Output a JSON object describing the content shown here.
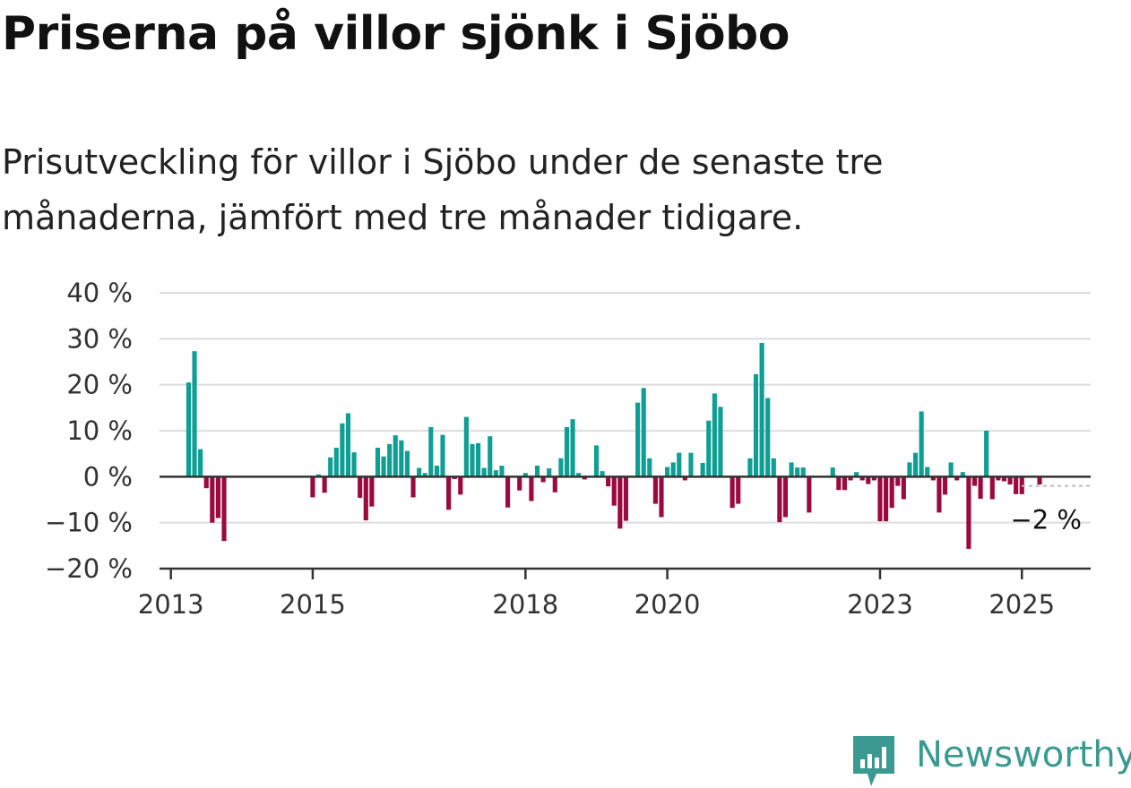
{
  "title": "Priserna på villor sjönk i Sjöbo",
  "subtitle": "Prisutveckling för villor i Sjöbo under de senaste tre månaderna, jämfört med tre månader tidigare.",
  "brand": {
    "name": "Newsworthy",
    "color": "#3a9a91",
    "icon": "bar-chart-speech-bubble-icon"
  },
  "colors": {
    "positive": "#0e9e93",
    "negative": "#9b0a3f",
    "grid": "#dddddd",
    "axis": "#333333"
  },
  "chart_data": {
    "type": "bar",
    "title": "Priserna på villor sjönk i Sjöbo",
    "xlabel": "",
    "ylabel": "",
    "ylim": [
      -20,
      40
    ],
    "y_ticks": [
      "−20 %",
      "−10 %",
      "0 %",
      "10 %",
      "20 %",
      "30 %",
      "40 %"
    ],
    "y_tick_values": [
      -20,
      -10,
      0,
      10,
      20,
      30,
      40
    ],
    "x_tick_labels": [
      "2013",
      "2015",
      "2018",
      "2020",
      "2023",
      "2025"
    ],
    "x_tick_values": [
      "2013-01",
      "2015-01",
      "2018-01",
      "2020-01",
      "2023-01",
      "2025-01"
    ],
    "grid": true,
    "last_value_label": "−2 %",
    "series": [
      {
        "x": [
          "2013-04",
          "2013-05",
          "2013-06",
          "2013-07",
          "2013-08",
          "2013-09",
          "2013-10",
          "2013-11",
          "2015-01",
          "2015-02",
          "2015-03",
          "2015-04",
          "2015-05",
          "2015-06",
          "2015-07",
          "2015-08",
          "2015-09",
          "2015-10",
          "2015-11",
          "2015-12",
          "2016-01",
          "2016-02",
          "2016-03",
          "2016-04",
          "2016-05",
          "2016-06",
          "2016-07",
          "2016-08",
          "2016-09",
          "2016-10",
          "2016-11",
          "2016-12",
          "2017-01",
          "2017-02",
          "2017-03",
          "2017-04",
          "2017-05",
          "2017-06",
          "2017-07",
          "2017-08",
          "2017-09",
          "2017-10",
          "2017-11",
          "2017-12",
          "2018-01",
          "2018-02",
          "2018-03",
          "2018-04",
          "2018-05",
          "2018-06",
          "2018-07",
          "2018-08",
          "2018-09",
          "2018-10",
          "2018-11",
          "2018-12",
          "2019-01",
          "2019-02",
          "2019-03",
          "2019-04",
          "2019-05",
          "2019-06",
          "2019-07",
          "2019-08",
          "2019-09",
          "2019-10",
          "2019-11",
          "2019-12",
          "2020-01",
          "2020-02",
          "2020-03",
          "2020-04",
          "2020-05",
          "2020-06",
          "2020-07",
          "2020-08",
          "2020-09",
          "2020-10",
          "2020-11",
          "2020-12",
          "2021-01",
          "2021-02",
          "2021-03",
          "2021-04",
          "2021-05",
          "2021-06",
          "2021-07",
          "2021-08",
          "2021-09",
          "2021-10",
          "2021-11",
          "2021-12",
          "2022-01",
          "2022-02",
          "2022-03",
          "2022-04",
          "2022-05",
          "2022-06",
          "2022-07",
          "2022-08",
          "2022-09",
          "2022-10",
          "2022-11",
          "2022-12",
          "2023-01",
          "2023-02",
          "2023-03",
          "2023-04",
          "2023-05",
          "2023-06",
          "2023-07",
          "2023-08",
          "2023-09",
          "2023-10",
          "2023-11",
          "2023-12",
          "2024-01",
          "2024-02",
          "2024-03",
          "2024-04",
          "2024-05",
          "2024-06",
          "2024-07",
          "2024-08",
          "2024-09",
          "2024-10",
          "2024-11",
          "2024-12",
          "2025-01",
          "2025-02",
          "2025-03",
          "2025-04",
          "2025-05"
        ],
        "values": [
          20.5,
          27.3,
          6,
          -2.5,
          -10,
          -9,
          -14,
          null,
          -4.5,
          0.5,
          -3.5,
          4.2,
          6.3,
          11.6,
          13.8,
          5.3,
          -4.6,
          -9.5,
          -6.5,
          6.3,
          4.4,
          7.1,
          9,
          7.9,
          5.6,
          -4.5,
          1.9,
          0.8,
          10.8,
          2.4,
          9.1,
          -7.2,
          -0.5,
          -3.9,
          13,
          7.1,
          7.3,
          1.9,
          8.8,
          1.4,
          2.4,
          -6.7,
          null,
          -3,
          0.8,
          -5.3,
          2.4,
          -1.2,
          1.8,
          -3.4,
          4,
          10.8,
          12.5,
          0.8,
          -0.6,
          null,
          6.8,
          1.2,
          -2.1,
          -6.3,
          -11.3,
          -9.6,
          null,
          16.1,
          19.3,
          4,
          -5.9,
          -8.8,
          2.1,
          3.1,
          5.2,
          -0.8,
          5.2,
          null,
          3,
          12.2,
          18.1,
          15.2,
          null,
          -6.8,
          -5.9,
          null,
          4,
          22.3,
          29.1,
          17.1,
          4,
          -9.9,
          -8.8,
          3.1,
          2,
          2,
          -7.8,
          null,
          null,
          null,
          2,
          -2.9,
          -2.9,
          -0.8,
          1,
          -0.8,
          -1.6,
          -0.8,
          -9.7,
          -9.7,
          -6.8,
          -2,
          -4.9,
          3.1,
          5.2,
          14.2,
          2.1,
          -0.8,
          -7.8,
          -3.9,
          3.1,
          -0.8,
          1,
          -15.7,
          -2,
          -4.8,
          10,
          -4.9,
          -0.8,
          -1,
          -1.7,
          -3.8,
          -3.8,
          null,
          null,
          -1.7,
          null
        ]
      }
    ]
  }
}
